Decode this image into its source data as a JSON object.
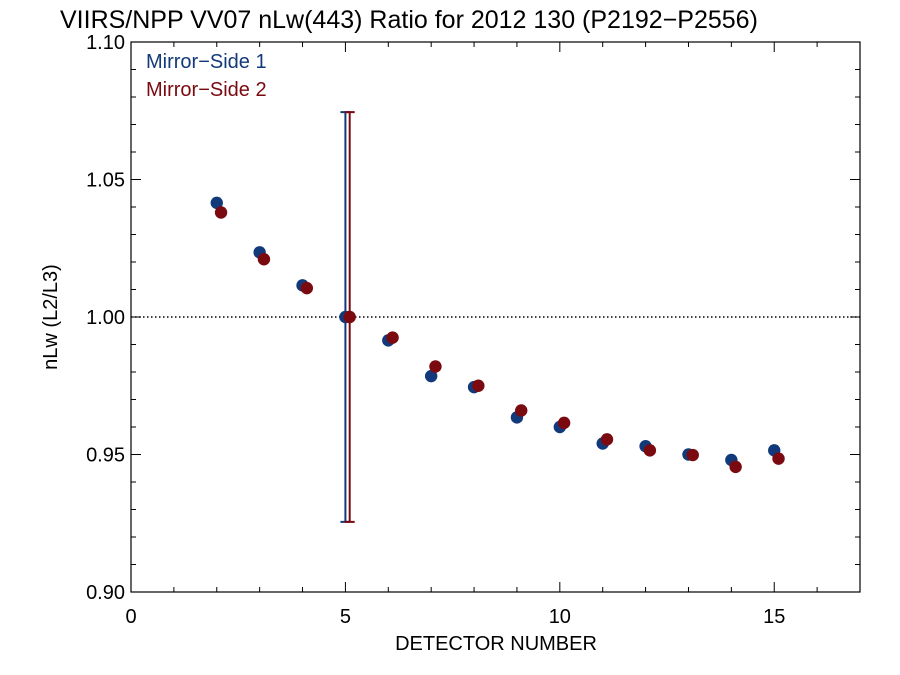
{
  "chart_data": {
    "type": "scatter",
    "title": "VIIRS/NPP VV07 nLw(443) Ratio for 2012 130 (P2192−P2556)",
    "xlabel": "DETECTOR NUMBER",
    "ylabel": "nLw (L2/L3)",
    "xlim": [
      0,
      17
    ],
    "ylim": [
      0.9,
      1.1
    ],
    "x_ticks": [
      0,
      5,
      10,
      15
    ],
    "x_tick_labels": [
      "0",
      "5",
      "10",
      "15"
    ],
    "y_ticks": [
      0.9,
      0.95,
      1.0,
      1.05,
      1.1
    ],
    "y_tick_labels": [
      "0.90",
      "0.95",
      "1.00",
      "1.05",
      "1.10"
    ],
    "reference_line": {
      "y": 1.0,
      "style": "dotted"
    },
    "legend_position": "top-left",
    "series": [
      {
        "name": "Mirror−Side 1",
        "color": "#123a7a",
        "x_offset": 0,
        "x": [
          2,
          3,
          4,
          5,
          6,
          7,
          8,
          9,
          10,
          11,
          12,
          13,
          14,
          15
        ],
        "y": [
          1.0415,
          1.0235,
          1.0115,
          1.0,
          0.9915,
          0.9785,
          0.9745,
          0.9635,
          0.96,
          0.954,
          0.953,
          0.95,
          0.948,
          0.9515
        ],
        "errorbar": {
          "x": 5,
          "low": 0.9255,
          "high": 1.0745
        }
      },
      {
        "name": "Mirror−Side 2",
        "color": "#7a0a10",
        "x_offset": 0.1,
        "x": [
          2,
          3,
          4,
          5,
          6,
          7,
          8,
          9,
          10,
          11,
          12,
          13,
          14,
          15
        ],
        "y": [
          1.038,
          1.021,
          1.0105,
          1.0,
          0.9925,
          0.982,
          0.975,
          0.966,
          0.9615,
          0.9555,
          0.9515,
          0.9498,
          0.9455,
          0.9485
        ],
        "errorbar": {
          "x": 5,
          "low": 0.9255,
          "high": 1.0745
        }
      }
    ]
  }
}
